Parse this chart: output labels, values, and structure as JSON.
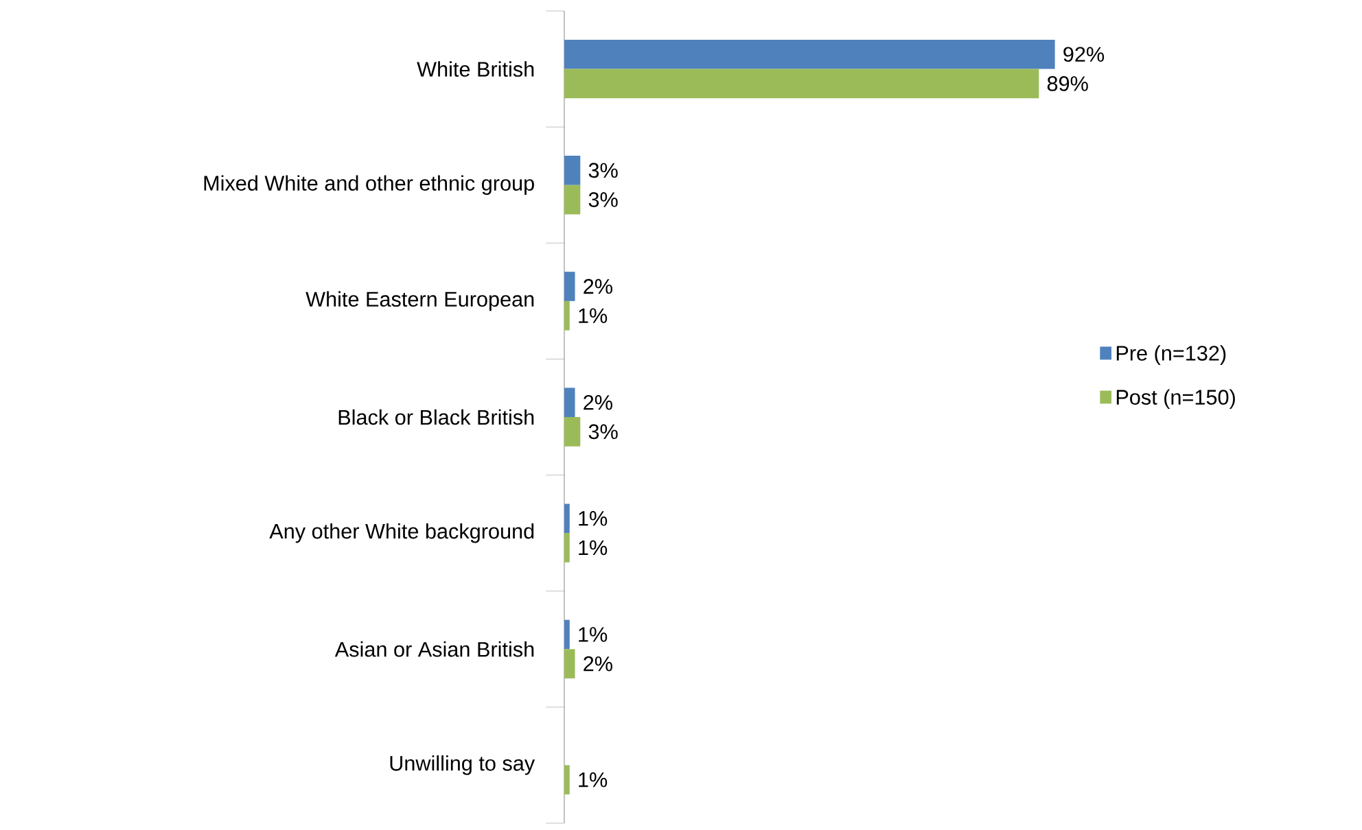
{
  "chart_data": {
    "type": "bar",
    "orientation": "horizontal",
    "categories": [
      "White British",
      "Mixed White and other ethnic group",
      "White Eastern European",
      "Black or Black British",
      "Any other White background",
      "Asian or Asian British",
      "Unwilling to say"
    ],
    "series": [
      {
        "name": "Pre (n=132)",
        "color": "#4f81bd",
        "values": [
          92,
          3,
          2,
          2,
          1,
          1,
          null
        ],
        "value_labels": [
          "92%",
          "3%",
          "2%",
          "2%",
          "1%",
          "1%",
          null
        ]
      },
      {
        "name": "Post (n=150)",
        "color": "#9bbb59",
        "values": [
          89,
          3,
          1,
          3,
          1,
          2,
          1
        ],
        "value_labels": [
          "89%",
          "3%",
          "1%",
          "3%",
          "1%",
          "2%",
          "1%"
        ]
      }
    ],
    "legend": "right",
    "tick_labels": "y"
  }
}
